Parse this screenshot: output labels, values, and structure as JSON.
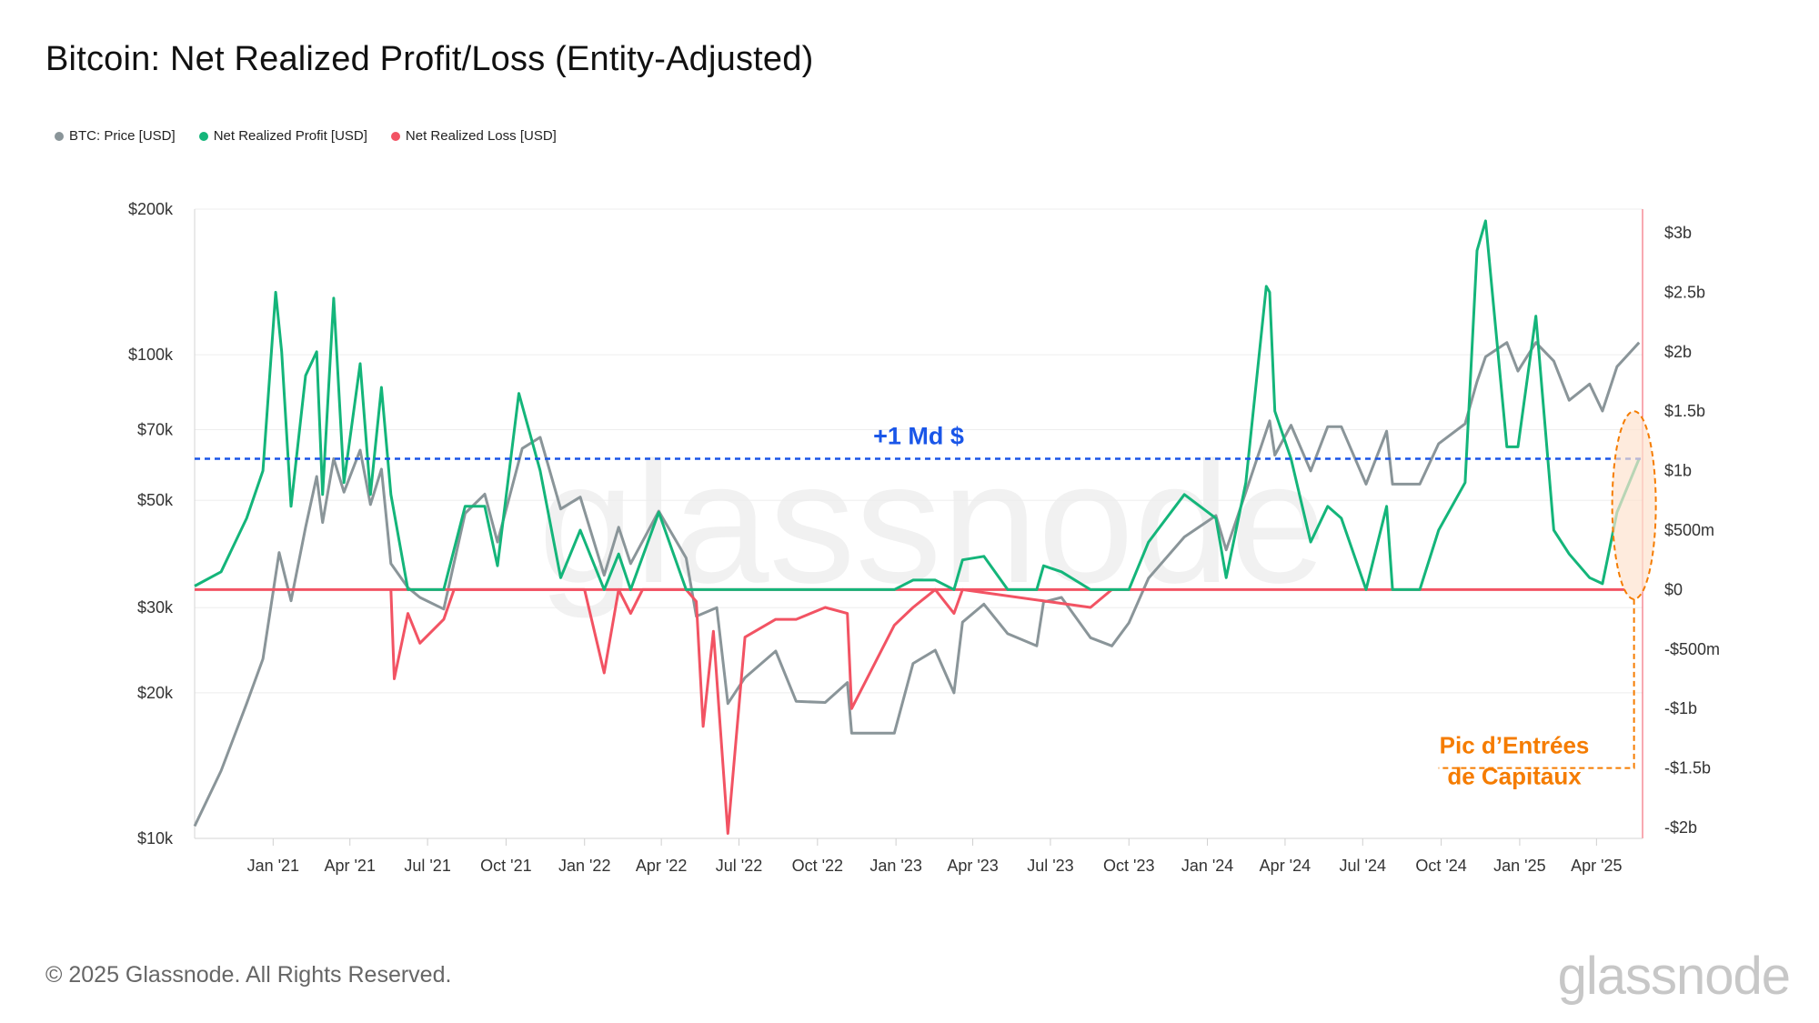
{
  "title": "Bitcoin: Net Realized Profit/Loss (Entity-Adjusted)",
  "legend": [
    {
      "label": "BTC: Price [USD]",
      "color": "#8a9599"
    },
    {
      "label": "Net Realized Profit [USD]",
      "color": "#14b57a"
    },
    {
      "label": "Net Realized Loss [USD]",
      "color": "#f25363"
    }
  ],
  "footer": "© 2025 Glassnode. All Rights Reserved.",
  "brand": "glassnode",
  "chart_data": {
    "type": "line",
    "x_tick_labels": [
      "Jan '21",
      "Apr '21",
      "Jul '21",
      "Oct '21",
      "Jan '22",
      "Apr '22",
      "Jul '22",
      "Oct '22",
      "Jan '23",
      "Apr '23",
      "Jul '23",
      "Oct '23",
      "Jan '24",
      "Apr '24",
      "Jul '24",
      "Oct '24",
      "Jan '25",
      "Apr '25"
    ],
    "x_start": "2020-10-01",
    "x_end": "2025-05-25",
    "left_axis": {
      "scale": "log",
      "range": [
        10000,
        200000
      ],
      "ticks": [
        {
          "v": 10000,
          "label": "$10k"
        },
        {
          "v": 20000,
          "label": "$20k"
        },
        {
          "v": 30000,
          "label": "$30k"
        },
        {
          "v": 50000,
          "label": "$50k"
        },
        {
          "v": 70000,
          "label": "$70k"
        },
        {
          "v": 100000,
          "label": "$100k"
        },
        {
          "v": 200000,
          "label": "$200k"
        }
      ]
    },
    "right_axis": {
      "scale": "linear",
      "range": [
        -2000000000,
        3000000000
      ],
      "ticks": [
        {
          "v": 3000000000,
          "label": "$3b"
        },
        {
          "v": 2500000000,
          "label": "$2.5b"
        },
        {
          "v": 2000000000,
          "label": "$2b"
        },
        {
          "v": 1500000000,
          "label": "$1.5b"
        },
        {
          "v": 1000000000,
          "label": "$1b"
        },
        {
          "v": 500000000,
          "label": "$500m"
        },
        {
          "v": 0,
          "label": "$0"
        },
        {
          "v": -500000000,
          "label": "-$500m"
        },
        {
          "v": -1000000000,
          "label": "-$1b"
        },
        {
          "v": -1500000000,
          "label": "-$1.5b"
        },
        {
          "v": -2000000000,
          "label": "-$2b"
        }
      ]
    },
    "series": [
      {
        "name": "BTC: Price [USD]",
        "axis": "left",
        "color": "#8a9599",
        "points": [
          [
            "2020-10-01",
            10600
          ],
          [
            "2020-11-01",
            13800
          ],
          [
            "2020-12-01",
            19000
          ],
          [
            "2020-12-20",
            23500
          ],
          [
            "2021-01-08",
            39000
          ],
          [
            "2021-01-22",
            31000
          ],
          [
            "2021-02-08",
            44000
          ],
          [
            "2021-02-21",
            56000
          ],
          [
            "2021-02-28",
            45000
          ],
          [
            "2021-03-13",
            61000
          ],
          [
            "2021-03-25",
            52000
          ],
          [
            "2021-04-13",
            63500
          ],
          [
            "2021-04-25",
            49000
          ],
          [
            "2021-05-08",
            58000
          ],
          [
            "2021-05-19",
            37000
          ],
          [
            "2021-06-08",
            33000
          ],
          [
            "2021-06-22",
            31500
          ],
          [
            "2021-07-20",
            29800
          ],
          [
            "2021-08-14",
            47000
          ],
          [
            "2021-09-06",
            51500
          ],
          [
            "2021-09-21",
            41000
          ],
          [
            "2021-10-20",
            64000
          ],
          [
            "2021-11-10",
            67500
          ],
          [
            "2021-12-04",
            48000
          ],
          [
            "2021-12-27",
            50800
          ],
          [
            "2022-01-24",
            35000
          ],
          [
            "2022-02-10",
            44000
          ],
          [
            "2022-02-24",
            37000
          ],
          [
            "2022-03-29",
            47500
          ],
          [
            "2022-04-30",
            38000
          ],
          [
            "2022-05-12",
            28800
          ],
          [
            "2022-06-05",
            30000
          ],
          [
            "2022-06-18",
            19000
          ],
          [
            "2022-07-08",
            21500
          ],
          [
            "2022-08-13",
            24400
          ],
          [
            "2022-09-06",
            19200
          ],
          [
            "2022-10-10",
            19100
          ],
          [
            "2022-11-05",
            21000
          ],
          [
            "2022-11-10",
            16500
          ],
          [
            "2022-12-30",
            16500
          ],
          [
            "2023-01-21",
            23000
          ],
          [
            "2023-02-16",
            24500
          ],
          [
            "2023-03-10",
            20000
          ],
          [
            "2023-03-20",
            28000
          ],
          [
            "2023-04-14",
            30500
          ],
          [
            "2023-05-12",
            26500
          ],
          [
            "2023-06-15",
            25000
          ],
          [
            "2023-06-23",
            30800
          ],
          [
            "2023-07-14",
            31500
          ],
          [
            "2023-08-17",
            26000
          ],
          [
            "2023-09-11",
            25000
          ],
          [
            "2023-10-01",
            27900
          ],
          [
            "2023-10-24",
            34500
          ],
          [
            "2023-12-05",
            42000
          ],
          [
            "2024-01-11",
            46500
          ],
          [
            "2024-01-23",
            39500
          ],
          [
            "2024-02-15",
            52000
          ],
          [
            "2024-03-14",
            73000
          ],
          [
            "2024-03-20",
            62000
          ],
          [
            "2024-04-08",
            71500
          ],
          [
            "2024-05-01",
            57500
          ],
          [
            "2024-05-21",
            71000
          ],
          [
            "2024-06-06",
            71000
          ],
          [
            "2024-07-05",
            54000
          ],
          [
            "2024-07-29",
            69500
          ],
          [
            "2024-08-05",
            54000
          ],
          [
            "2024-09-06",
            54000
          ],
          [
            "2024-09-28",
            65500
          ],
          [
            "2024-10-29",
            72000
          ],
          [
            "2024-11-12",
            88000
          ],
          [
            "2024-11-22",
            99000
          ],
          [
            "2024-12-17",
            106000
          ],
          [
            "2024-12-30",
            92500
          ],
          [
            "2025-01-20",
            106000
          ],
          [
            "2025-02-10",
            97000
          ],
          [
            "2025-02-28",
            80500
          ],
          [
            "2025-03-24",
            87000
          ],
          [
            "2025-04-08",
            76500
          ],
          [
            "2025-04-25",
            94500
          ],
          [
            "2025-05-21",
            106000
          ]
        ]
      },
      {
        "name": "Net Realized Profit [USD]",
        "axis": "right",
        "color": "#14b57a",
        "points": [
          [
            "2020-10-01",
            30000000
          ],
          [
            "2020-11-01",
            150000000
          ],
          [
            "2020-12-01",
            600000000
          ],
          [
            "2020-12-20",
            1000000000
          ],
          [
            "2021-01-04",
            2500000000
          ],
          [
            "2021-01-11",
            2000000000
          ],
          [
            "2021-01-22",
            700000000
          ],
          [
            "2021-02-08",
            1800000000
          ],
          [
            "2021-02-21",
            2000000000
          ],
          [
            "2021-02-28",
            800000000
          ],
          [
            "2021-03-13",
            2450000000
          ],
          [
            "2021-03-25",
            900000000
          ],
          [
            "2021-04-13",
            1900000000
          ],
          [
            "2021-04-25",
            800000000
          ],
          [
            "2021-05-08",
            1700000000
          ],
          [
            "2021-05-19",
            800000000
          ],
          [
            "2021-06-08",
            0
          ],
          [
            "2021-06-22",
            0
          ],
          [
            "2021-07-20",
            0
          ],
          [
            "2021-08-14",
            700000000
          ],
          [
            "2021-09-06",
            700000000
          ],
          [
            "2021-09-21",
            200000000
          ],
          [
            "2021-10-16",
            1650000000
          ],
          [
            "2021-11-10",
            1000000000
          ],
          [
            "2021-12-04",
            100000000
          ],
          [
            "2021-12-27",
            500000000
          ],
          [
            "2022-01-24",
            0
          ],
          [
            "2022-02-10",
            300000000
          ],
          [
            "2022-02-24",
            0
          ],
          [
            "2022-03-29",
            650000000
          ],
          [
            "2022-04-30",
            0
          ],
          [
            "2022-05-12",
            0
          ],
          [
            "2022-06-18",
            0
          ],
          [
            "2022-12-30",
            0
          ],
          [
            "2023-01-21",
            80000000
          ],
          [
            "2023-02-16",
            80000000
          ],
          [
            "2023-03-10",
            0
          ],
          [
            "2023-03-20",
            250000000
          ],
          [
            "2023-04-14",
            280000000
          ],
          [
            "2023-05-12",
            0
          ],
          [
            "2023-06-15",
            0
          ],
          [
            "2023-06-23",
            200000000
          ],
          [
            "2023-07-14",
            150000000
          ],
          [
            "2023-08-17",
            0
          ],
          [
            "2023-09-11",
            0
          ],
          [
            "2023-10-01",
            0
          ],
          [
            "2023-10-24",
            400000000
          ],
          [
            "2023-12-05",
            800000000
          ],
          [
            "2024-01-11",
            600000000
          ],
          [
            "2024-01-23",
            100000000
          ],
          [
            "2024-02-15",
            900000000
          ],
          [
            "2024-03-10",
            2550000000
          ],
          [
            "2024-03-14",
            2500000000
          ],
          [
            "2024-03-20",
            1500000000
          ],
          [
            "2024-04-08",
            1100000000
          ],
          [
            "2024-05-01",
            400000000
          ],
          [
            "2024-05-21",
            700000000
          ],
          [
            "2024-06-06",
            600000000
          ],
          [
            "2024-07-05",
            0
          ],
          [
            "2024-07-29",
            700000000
          ],
          [
            "2024-08-05",
            0
          ],
          [
            "2024-09-06",
            0
          ],
          [
            "2024-09-28",
            500000000
          ],
          [
            "2024-10-29",
            900000000
          ],
          [
            "2024-11-12",
            2850000000
          ],
          [
            "2024-11-22",
            3100000000
          ],
          [
            "2024-12-17",
            1200000000
          ],
          [
            "2024-12-30",
            1200000000
          ],
          [
            "2025-01-20",
            2300000000
          ],
          [
            "2025-02-10",
            500000000
          ],
          [
            "2025-02-28",
            300000000
          ],
          [
            "2025-03-24",
            100000000
          ],
          [
            "2025-04-08",
            50000000
          ],
          [
            "2025-04-25",
            650000000
          ],
          [
            "2025-05-21",
            1100000000
          ]
        ]
      },
      {
        "name": "Net Realized Loss [USD]",
        "axis": "right",
        "color": "#f25363",
        "points": [
          [
            "2021-05-19",
            0
          ],
          [
            "2021-05-23",
            -750000000
          ],
          [
            "2021-06-08",
            -200000000
          ],
          [
            "2021-06-22",
            -450000000
          ],
          [
            "2021-07-20",
            -250000000
          ],
          [
            "2021-08-01",
            0
          ],
          [
            "2021-12-04",
            0
          ],
          [
            "2022-01-01",
            0
          ],
          [
            "2022-01-24",
            -700000000
          ],
          [
            "2022-02-10",
            0
          ],
          [
            "2022-02-24",
            -200000000
          ],
          [
            "2022-03-10",
            0
          ],
          [
            "2022-04-30",
            0
          ],
          [
            "2022-05-12",
            -100000000
          ],
          [
            "2022-05-20",
            -1150000000
          ],
          [
            "2022-06-01",
            -350000000
          ],
          [
            "2022-06-18",
            -2050000000
          ],
          [
            "2022-07-08",
            -400000000
          ],
          [
            "2022-08-13",
            -250000000
          ],
          [
            "2022-09-06",
            -250000000
          ],
          [
            "2022-10-10",
            -150000000
          ],
          [
            "2022-11-05",
            -200000000
          ],
          [
            "2022-11-10",
            -1000000000
          ],
          [
            "2022-12-30",
            -300000000
          ],
          [
            "2023-01-21",
            -150000000
          ],
          [
            "2023-02-16",
            0
          ],
          [
            "2023-03-10",
            -200000000
          ],
          [
            "2023-03-20",
            0
          ],
          [
            "2023-08-17",
            -150000000
          ],
          [
            "2023-09-11",
            0
          ]
        ]
      }
    ],
    "reference_line": {
      "value": 1100000000,
      "label": "+1 Md $",
      "color": "#1a56e8"
    },
    "zero_line_color": "#f25363",
    "annotation": {
      "label_line1": "Pic d’Entrées",
      "label_line2": "de Capitaux",
      "color": "#f57c00",
      "date": "2025-05-15"
    }
  }
}
